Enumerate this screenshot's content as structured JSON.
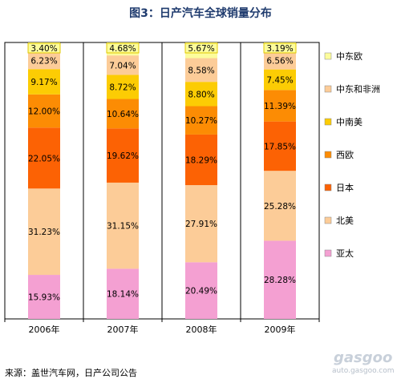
{
  "chart_title": "图3：日产汽车全球销量分布",
  "source_note": "来源：盖世汽车网，日产公司公告",
  "watermark": {
    "logo_text": "gasgoo",
    "small_text": "盖世汽车资讯",
    "url_text": "auto.gasgoo.com"
  },
  "colors": {
    "亚太": "#f4a0d2",
    "北美": "#fccc98",
    "日本": "#fc6204",
    "西欧": "#fc8c04",
    "中南美": "#fccc04",
    "中东和非洲": "#fccc98",
    "中东欧": "#fcfc9c"
  },
  "chart_data": {
    "type": "bar",
    "stacked": true,
    "percent_stacked": true,
    "title": "图3：日产汽车全球销量分布",
    "categories": [
      "2006年",
      "2007年",
      "2008年",
      "2009年"
    ],
    "ylim": [
      0,
      100
    ],
    "grid": false,
    "legend_position": "right",
    "series": [
      {
        "name": "亚太",
        "values": [
          15.93,
          18.14,
          20.49,
          28.28
        ],
        "labels": [
          "15.93%",
          "18.14%",
          "20.49%",
          "28.28%"
        ]
      },
      {
        "name": "北美",
        "values": [
          31.23,
          31.15,
          27.91,
          25.28
        ],
        "labels": [
          "31.23%",
          "31.15%",
          "27.91%",
          "25.28%"
        ]
      },
      {
        "name": "日本",
        "values": [
          22.05,
          19.62,
          18.29,
          17.85
        ],
        "labels": [
          "22.05%",
          "19.62%",
          "18.29%",
          "17.85%"
        ]
      },
      {
        "name": "西欧",
        "values": [
          12.0,
          10.64,
          10.27,
          11.39
        ],
        "labels": [
          "12.00%",
          "10.64%",
          "10.27%",
          "11.39%"
        ]
      },
      {
        "name": "中南美",
        "values": [
          9.17,
          8.72,
          8.8,
          7.45
        ],
        "labels": [
          "9.17%",
          "8.72%",
          "8.80%",
          "7.45%"
        ]
      },
      {
        "name": "中东和非洲",
        "values": [
          6.23,
          7.04,
          8.58,
          6.56
        ],
        "labels": [
          "6.23%",
          "7.04%",
          "8.58%",
          "6.56%"
        ]
      },
      {
        "name": "中东欧",
        "values": [
          3.4,
          4.68,
          5.67,
          3.19
        ],
        "labels": [
          "3.40%",
          "4.68%",
          "5.67%",
          "3.19%"
        ]
      }
    ],
    "legend_order": [
      "中东欧",
      "中东和非洲",
      "中南美",
      "西欧",
      "日本",
      "北美",
      "亚太"
    ]
  }
}
